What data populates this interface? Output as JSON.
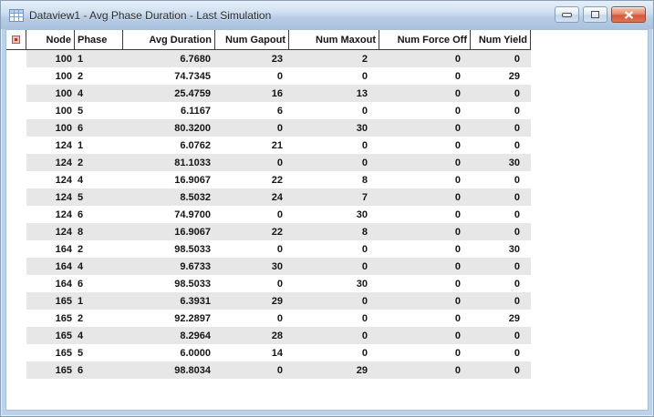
{
  "window": {
    "title": "Dataview1 - Avg Phase Duration - Last Simulation",
    "controls": {
      "minimize_label": "minimize",
      "maximize_label": "maximize",
      "close_label": "close"
    }
  },
  "table": {
    "columns": [
      "Node",
      "Phase",
      "Avg Duration",
      "Num Gapout",
      "Num Maxout",
      "Num Force Off",
      "Num Yield"
    ],
    "rows": [
      [
        "100",
        "1",
        "6.7680",
        "23",
        "2",
        "0",
        "0"
      ],
      [
        "100",
        "2",
        "74.7345",
        "0",
        "0",
        "0",
        "29"
      ],
      [
        "100",
        "4",
        "25.4759",
        "16",
        "13",
        "0",
        "0"
      ],
      [
        "100",
        "5",
        "6.1167",
        "6",
        "0",
        "0",
        "0"
      ],
      [
        "100",
        "6",
        "80.3200",
        "0",
        "30",
        "0",
        "0"
      ],
      [
        "124",
        "1",
        "6.0762",
        "21",
        "0",
        "0",
        "0"
      ],
      [
        "124",
        "2",
        "81.1033",
        "0",
        "0",
        "0",
        "30"
      ],
      [
        "124",
        "4",
        "16.9067",
        "22",
        "8",
        "0",
        "0"
      ],
      [
        "124",
        "5",
        "8.5032",
        "24",
        "7",
        "0",
        "0"
      ],
      [
        "124",
        "6",
        "74.9700",
        "0",
        "30",
        "0",
        "0"
      ],
      [
        "124",
        "8",
        "16.9067",
        "22",
        "8",
        "0",
        "0"
      ],
      [
        "164",
        "2",
        "98.5033",
        "0",
        "0",
        "0",
        "30"
      ],
      [
        "164",
        "4",
        "9.6733",
        "30",
        "0",
        "0",
        "0"
      ],
      [
        "164",
        "6",
        "98.5033",
        "0",
        "30",
        "0",
        "0"
      ],
      [
        "165",
        "1",
        "6.3931",
        "29",
        "0",
        "0",
        "0"
      ],
      [
        "165",
        "2",
        "92.2897",
        "0",
        "0",
        "0",
        "29"
      ],
      [
        "165",
        "4",
        "8.2964",
        "28",
        "0",
        "0",
        "0"
      ],
      [
        "165",
        "5",
        "6.0000",
        "14",
        "0",
        "0",
        "0"
      ],
      [
        "165",
        "6",
        "98.8034",
        "0",
        "29",
        "0",
        "0"
      ]
    ]
  },
  "colors": {
    "titlebar_top": "#e6eff9",
    "titlebar_bottom": "#a9c2dd",
    "frame": "#bdd2e8",
    "row_stripe": "#e7e7e7",
    "header_line": "#3d3d3d",
    "close_button": "#d4593b",
    "corner_icon_red": "#ad3226"
  }
}
